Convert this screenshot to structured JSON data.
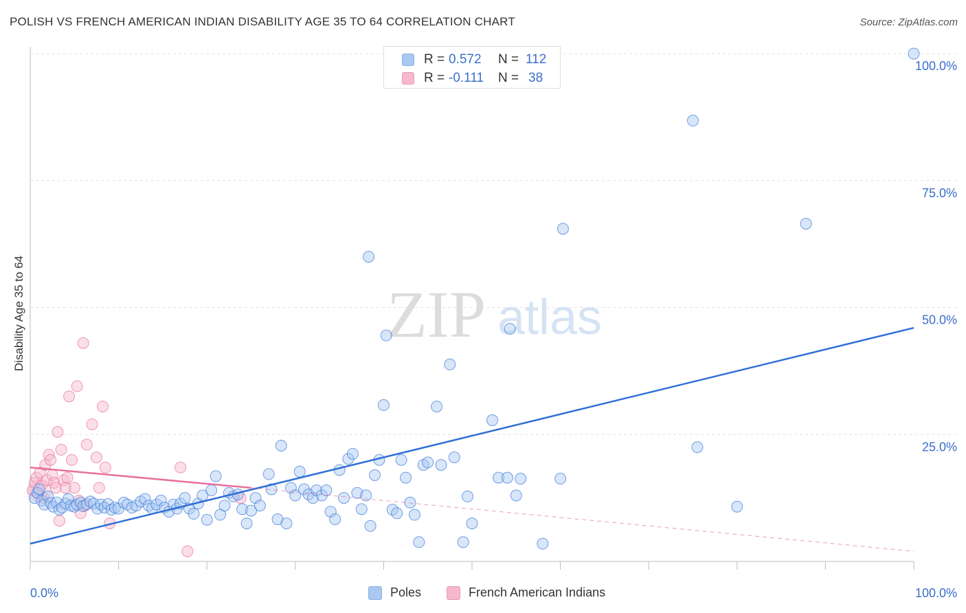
{
  "title": "POLISH VS FRENCH AMERICAN INDIAN DISABILITY AGE 35 TO 64 CORRELATION CHART",
  "source": "Source: ZipAtlas.com",
  "watermark": {
    "zip": "ZIP",
    "atlas": "atlas"
  },
  "legend_top": {
    "rows": [
      {
        "r_label": "R =",
        "r_value": "0.572",
        "n_label": "N =",
        "n_value": "112",
        "color": "#a9c8f2"
      },
      {
        "r_label": "R =",
        "r_value": "-0.111",
        "n_label": "N =",
        "n_value": "38",
        "color": "#f7b8cd"
      }
    ]
  },
  "legend_bottom": {
    "poles": "Poles",
    "french": "French American Indians"
  },
  "chart_data": {
    "type": "scatter",
    "title": "POLISH VS FRENCH AMERICAN INDIAN DISABILITY AGE 35 TO 64 CORRELATION CHART",
    "xlabel": "",
    "ylabel": "Disability Age 35 to 64",
    "xlim": [
      0,
      100
    ],
    "ylim": [
      0,
      100
    ],
    "x_tick_labels": [
      "0.0%",
      "100.0%"
    ],
    "y_tick_labels": [
      "25.0%",
      "50.0%",
      "75.0%",
      "100.0%"
    ],
    "y_ticks": [
      25,
      50,
      75,
      100
    ],
    "grid": true,
    "legend_position": "top-center",
    "series": [
      {
        "name": "Poles",
        "color": "#3a78d8",
        "fill": "rgba(169,200,242,0.45)",
        "trend": {
          "x": [
            0,
            100
          ],
          "y": [
            3.5,
            46
          ]
        },
        "points": [
          [
            0.5,
            12.5
          ],
          [
            0.8,
            13.5
          ],
          [
            1.0,
            14.2
          ],
          [
            1.3,
            12.0
          ],
          [
            1.6,
            11.2
          ],
          [
            2.0,
            12.8
          ],
          [
            2.3,
            11.5
          ],
          [
            2.6,
            10.8
          ],
          [
            3.0,
            11.6
          ],
          [
            3.3,
            10.2
          ],
          [
            3.6,
            10.6
          ],
          [
            4.0,
            11.4
          ],
          [
            4.3,
            12.3
          ],
          [
            4.6,
            11.0
          ],
          [
            5.0,
            10.8
          ],
          [
            5.3,
            11.2
          ],
          [
            5.7,
            11.6
          ],
          [
            6.0,
            10.9
          ],
          [
            6.4,
            11.3
          ],
          [
            6.8,
            11.8
          ],
          [
            7.2,
            11.4
          ],
          [
            7.6,
            10.4
          ],
          [
            8.0,
            11.2
          ],
          [
            8.4,
            10.6
          ],
          [
            8.8,
            11.3
          ],
          [
            9.2,
            10.2
          ],
          [
            9.6,
            10.6
          ],
          [
            10.0,
            10.4
          ],
          [
            10.6,
            11.6
          ],
          [
            11.0,
            11.2
          ],
          [
            11.5,
            10.6
          ],
          [
            12.0,
            11.0
          ],
          [
            12.5,
            11.8
          ],
          [
            13.0,
            12.3
          ],
          [
            13.4,
            11.0
          ],
          [
            13.8,
            10.4
          ],
          [
            14.3,
            11.2
          ],
          [
            14.8,
            12.0
          ],
          [
            15.2,
            10.6
          ],
          [
            15.7,
            9.8
          ],
          [
            16.2,
            11.2
          ],
          [
            16.6,
            10.4
          ],
          [
            17.0,
            11.4
          ],
          [
            17.5,
            12.5
          ],
          [
            18.0,
            10.4
          ],
          [
            18.5,
            9.4
          ],
          [
            19.0,
            11.4
          ],
          [
            19.5,
            13.0
          ],
          [
            20.0,
            8.2
          ],
          [
            20.5,
            14.0
          ],
          [
            21.0,
            16.8
          ],
          [
            21.5,
            9.2
          ],
          [
            22.0,
            11.0
          ],
          [
            22.5,
            13.5
          ],
          [
            23.0,
            12.8
          ],
          [
            23.5,
            13.2
          ],
          [
            24.0,
            10.3
          ],
          [
            24.5,
            7.5
          ],
          [
            25.0,
            10.0
          ],
          [
            25.5,
            12.5
          ],
          [
            26.0,
            11.0
          ],
          [
            27.0,
            17.2
          ],
          [
            27.3,
            14.2
          ],
          [
            28.0,
            8.3
          ],
          [
            28.4,
            22.8
          ],
          [
            29.0,
            7.5
          ],
          [
            29.5,
            14.5
          ],
          [
            30.0,
            13.0
          ],
          [
            30.5,
            17.7
          ],
          [
            31.0,
            14.2
          ],
          [
            31.5,
            13.2
          ],
          [
            32.0,
            12.5
          ],
          [
            32.4,
            14.0
          ],
          [
            33.0,
            13.0
          ],
          [
            33.5,
            14.0
          ],
          [
            34.0,
            9.8
          ],
          [
            34.5,
            8.3
          ],
          [
            35.0,
            18.0
          ],
          [
            35.5,
            12.5
          ],
          [
            36.0,
            20.2
          ],
          [
            36.5,
            21.2
          ],
          [
            37.0,
            13.5
          ],
          [
            37.5,
            10.3
          ],
          [
            38.0,
            13.0
          ],
          [
            38.5,
            7.0
          ],
          [
            39.0,
            17.0
          ],
          [
            39.5,
            20.0
          ],
          [
            40.0,
            30.8
          ],
          [
            41.0,
            10.2
          ],
          [
            41.5,
            9.5
          ],
          [
            42.0,
            20.0
          ],
          [
            42.5,
            16.5
          ],
          [
            43.0,
            11.6
          ],
          [
            43.5,
            9.2
          ],
          [
            44.0,
            3.8
          ],
          [
            44.5,
            19.0
          ],
          [
            45.0,
            19.5
          ],
          [
            46.0,
            30.5
          ],
          [
            46.5,
            19.0
          ],
          [
            47.5,
            38.8
          ],
          [
            48.0,
            20.5
          ],
          [
            49.0,
            3.8
          ],
          [
            49.5,
            12.8
          ],
          [
            50.0,
            7.5
          ],
          [
            53.0,
            16.5
          ],
          [
            54.0,
            16.5
          ],
          [
            55.0,
            13.0
          ],
          [
            55.5,
            16.3
          ],
          [
            58.0,
            3.5
          ],
          [
            60.0,
            16.3
          ],
          [
            38.3,
            60.0
          ],
          [
            40.3,
            44.5
          ],
          [
            54.3,
            45.8
          ],
          [
            60.3,
            65.5
          ],
          [
            75.0,
            86.8
          ],
          [
            87.8,
            66.5
          ],
          [
            75.5,
            22.5
          ],
          [
            80.0,
            10.8
          ],
          [
            52.3,
            27.8
          ],
          [
            100,
            100
          ]
        ]
      },
      {
        "name": "French American Indians",
        "color": "#e8709a",
        "fill": "rgba(247,184,205,0.45)",
        "trend": {
          "x": [
            0,
            25
          ],
          "y": [
            18.5,
            14.5
          ]
        },
        "trend_extension": {
          "x": [
            25,
            100
          ],
          "y": [
            14.5,
            2
          ]
        },
        "points": [
          [
            0.3,
            14.0
          ],
          [
            0.5,
            15.5
          ],
          [
            0.7,
            16.5
          ],
          [
            0.9,
            13.5
          ],
          [
            1.1,
            17.5
          ],
          [
            1.3,
            15.0
          ],
          [
            1.5,
            12.5
          ],
          [
            1.7,
            19.0
          ],
          [
            1.9,
            16.0
          ],
          [
            2.1,
            21.0
          ],
          [
            2.3,
            20.0
          ],
          [
            2.5,
            17.0
          ],
          [
            2.7,
            15.5
          ],
          [
            2.9,
            14.5
          ],
          [
            3.1,
            25.5
          ],
          [
            3.3,
            8.0
          ],
          [
            3.5,
            22.0
          ],
          [
            3.8,
            16.0
          ],
          [
            4.0,
            14.5
          ],
          [
            4.2,
            16.5
          ],
          [
            4.4,
            32.5
          ],
          [
            4.7,
            20.0
          ],
          [
            5.0,
            14.5
          ],
          [
            5.3,
            34.5
          ],
          [
            5.5,
            12.0
          ],
          [
            5.7,
            9.5
          ],
          [
            6.0,
            43.0
          ],
          [
            6.2,
            11.0
          ],
          [
            6.4,
            23.0
          ],
          [
            7.0,
            27.0
          ],
          [
            7.5,
            20.5
          ],
          [
            7.8,
            14.5
          ],
          [
            8.2,
            30.5
          ],
          [
            8.5,
            18.5
          ],
          [
            9.0,
            7.5
          ],
          [
            17.0,
            18.5
          ],
          [
            17.8,
            2.0
          ],
          [
            23.8,
            12.5
          ]
        ]
      }
    ]
  }
}
